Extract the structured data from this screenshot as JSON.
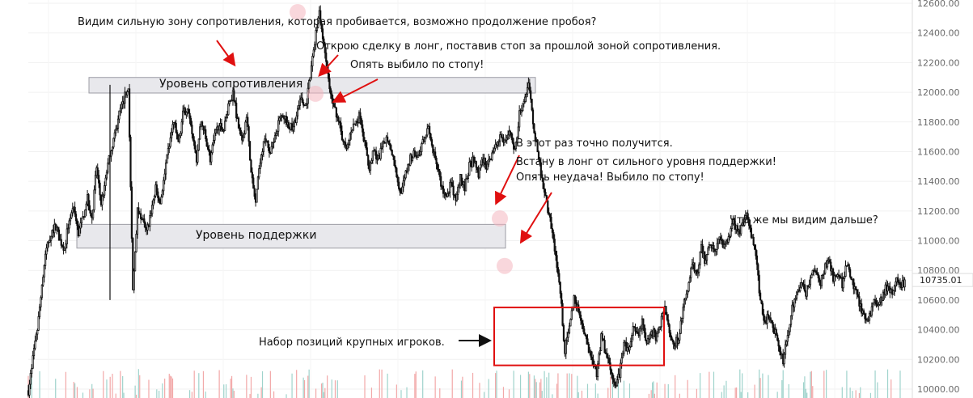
{
  "chart_data": {
    "type": "candlestick",
    "yaxis": {
      "ticks": [
        "12600.00",
        "12400.00",
        "12200.00",
        "12000.00",
        "11800.00",
        "11600.00",
        "11400.00",
        "11200.00",
        "11000.00",
        "10800.00",
        "10600.00",
        "10400.00",
        "10200.00",
        "10000.00"
      ],
      "ylim": [
        9980,
        12620
      ],
      "scale": "linear",
      "current_price_label": "10735.01",
      "current_price": 10735.01
    },
    "grid": true,
    "zones": [
      {
        "label": "Уровень сопротивления",
        "y_low": 11995,
        "y_high": 12100
      },
      {
        "label": "Уровень поддержки",
        "y_low": 10950,
        "y_high": 11110
      }
    ],
    "box": {
      "y_low": 10160,
      "y_high": 10550
    },
    "annotations": [
      "Видим сильную зону сопротивления, которая пробивается, возможно продолжение пробоя?",
      "Открою сделку в лонг, поставив стоп за прошлой зоной сопротивления.",
      "Опять выбило по стопу!",
      "В этот раз точно получится.",
      "Встану в лонг от сильного уровня поддержки!",
      "Опять неудача! Выбило по стопу!",
      "Что же мы видим дальше?",
      "Набор позиций крупных игроков."
    ],
    "price_path": [
      [
        0,
        9990
      ],
      [
        4,
        10200
      ],
      [
        8,
        10400
      ],
      [
        12,
        10700
      ],
      [
        16,
        10950
      ],
      [
        20,
        11050
      ],
      [
        24,
        11100
      ],
      [
        28,
        11000
      ],
      [
        32,
        10950
      ],
      [
        36,
        11150
      ],
      [
        40,
        11200
      ],
      [
        44,
        11050
      ],
      [
        48,
        11150
      ],
      [
        52,
        11300
      ],
      [
        56,
        11150
      ],
      [
        60,
        11500
      ],
      [
        64,
        11250
      ],
      [
        68,
        11400
      ],
      [
        72,
        11600
      ],
      [
        76,
        11700
      ],
      [
        80,
        11850
      ],
      [
        84,
        11950
      ],
      [
        88,
        12050
      ],
      [
        92,
        10650
      ],
      [
        96,
        11200
      ],
      [
        100,
        11150
      ],
      [
        104,
        11050
      ],
      [
        108,
        11200
      ],
      [
        112,
        11350
      ],
      [
        116,
        11250
      ],
      [
        120,
        11450
      ],
      [
        124,
        11650
      ],
      [
        128,
        11800
      ],
      [
        132,
        11650
      ],
      [
        136,
        11850
      ],
      [
        140,
        11900
      ],
      [
        144,
        11700
      ],
      [
        148,
        11550
      ],
      [
        152,
        11800
      ],
      [
        156,
        11700
      ],
      [
        160,
        11550
      ],
      [
        164,
        11700
      ],
      [
        168,
        11800
      ],
      [
        172,
        11750
      ],
      [
        176,
        11900
      ],
      [
        180,
        12000
      ],
      [
        184,
        11800
      ],
      [
        188,
        11650
      ],
      [
        192,
        11850
      ],
      [
        196,
        11450
      ],
      [
        200,
        11250
      ],
      [
        204,
        11550
      ],
      [
        208,
        11700
      ],
      [
        212,
        11600
      ],
      [
        216,
        11650
      ],
      [
        220,
        11800
      ],
      [
        224,
        11850
      ],
      [
        228,
        11800
      ],
      [
        232,
        11750
      ],
      [
        236,
        11850
      ],
      [
        240,
        11950
      ],
      [
        244,
        11900
      ],
      [
        248,
        12100
      ],
      [
        252,
        12350
      ],
      [
        256,
        12550
      ],
      [
        260,
        12300
      ],
      [
        264,
        12100
      ],
      [
        268,
        11900
      ],
      [
        272,
        11850
      ],
      [
        276,
        11700
      ],
      [
        280,
        11600
      ],
      [
        284,
        11750
      ],
      [
        288,
        11800
      ],
      [
        292,
        11850
      ],
      [
        296,
        11650
      ],
      [
        300,
        11500
      ],
      [
        304,
        11600
      ],
      [
        308,
        11550
      ],
      [
        312,
        11650
      ],
      [
        316,
        11700
      ],
      [
        320,
        11600
      ],
      [
        324,
        11450
      ],
      [
        328,
        11300
      ],
      [
        332,
        11450
      ],
      [
        336,
        11550
      ],
      [
        340,
        11600
      ],
      [
        344,
        11550
      ],
      [
        348,
        11700
      ],
      [
        352,
        11750
      ],
      [
        356,
        11600
      ],
      [
        360,
        11500
      ],
      [
        364,
        11350
      ],
      [
        368,
        11300
      ],
      [
        372,
        11400
      ],
      [
        376,
        11250
      ],
      [
        380,
        11450
      ],
      [
        384,
        11350
      ],
      [
        388,
        11500
      ],
      [
        392,
        11550
      ],
      [
        396,
        11450
      ],
      [
        400,
        11550
      ],
      [
        404,
        11500
      ],
      [
        408,
        11600
      ],
      [
        412,
        11650
      ],
      [
        416,
        11700
      ],
      [
        420,
        11650
      ],
      [
        424,
        11750
      ],
      [
        428,
        11600
      ],
      [
        432,
        11850
      ],
      [
        436,
        11950
      ],
      [
        440,
        12050
      ],
      [
        444,
        11800
      ],
      [
        448,
        11600
      ],
      [
        452,
        11400
      ],
      [
        456,
        11250
      ],
      [
        460,
        11100
      ],
      [
        464,
        10900
      ],
      [
        468,
        10650
      ],
      [
        472,
        10250
      ],
      [
        476,
        10450
      ],
      [
        480,
        10600
      ],
      [
        484,
        10550
      ],
      [
        488,
        10400
      ],
      [
        492,
        10300
      ],
      [
        496,
        10200
      ],
      [
        500,
        10100
      ],
      [
        504,
        10350
      ],
      [
        508,
        10250
      ],
      [
        512,
        10150
      ],
      [
        516,
        10000
      ],
      [
        520,
        10100
      ],
      [
        524,
        10300
      ],
      [
        528,
        10250
      ],
      [
        532,
        10400
      ],
      [
        536,
        10350
      ],
      [
        540,
        10450
      ],
      [
        544,
        10300
      ],
      [
        548,
        10400
      ],
      [
        552,
        10350
      ],
      [
        556,
        10450
      ],
      [
        560,
        10550
      ],
      [
        564,
        10400
      ],
      [
        568,
        10300
      ],
      [
        572,
        10350
      ],
      [
        576,
        10550
      ],
      [
        580,
        10650
      ],
      [
        584,
        10850
      ],
      [
        588,
        10750
      ],
      [
        592,
        10950
      ],
      [
        596,
        10850
      ],
      [
        600,
        11000
      ],
      [
        604,
        10900
      ],
      [
        608,
        11050
      ],
      [
        612,
        10950
      ],
      [
        616,
        11000
      ],
      [
        620,
        11150
      ],
      [
        624,
        11050
      ],
      [
        628,
        11100
      ],
      [
        632,
        11200
      ],
      [
        636,
        11050
      ],
      [
        640,
        10900
      ],
      [
        644,
        10600
      ],
      [
        648,
        10450
      ],
      [
        652,
        10500
      ],
      [
        656,
        10400
      ],
      [
        660,
        10300
      ],
      [
        664,
        10200
      ],
      [
        668,
        10350
      ],
      [
        672,
        10550
      ],
      [
        676,
        10650
      ],
      [
        680,
        10700
      ],
      [
        684,
        10650
      ],
      [
        688,
        10750
      ],
      [
        692,
        10800
      ],
      [
        696,
        10700
      ],
      [
        700,
        10800
      ],
      [
        704,
        10900
      ],
      [
        708,
        10750
      ],
      [
        712,
        10800
      ],
      [
        716,
        10700
      ],
      [
        720,
        10850
      ],
      [
        724,
        10750
      ],
      [
        728,
        10650
      ],
      [
        732,
        10550
      ],
      [
        736,
        10450
      ],
      [
        740,
        10500
      ],
      [
        744,
        10600
      ],
      [
        748,
        10550
      ],
      [
        752,
        10650
      ],
      [
        756,
        10700
      ],
      [
        760,
        10650
      ],
      [
        764,
        10750
      ],
      [
        768,
        10700
      ],
      [
        772,
        10735
      ]
    ]
  }
}
